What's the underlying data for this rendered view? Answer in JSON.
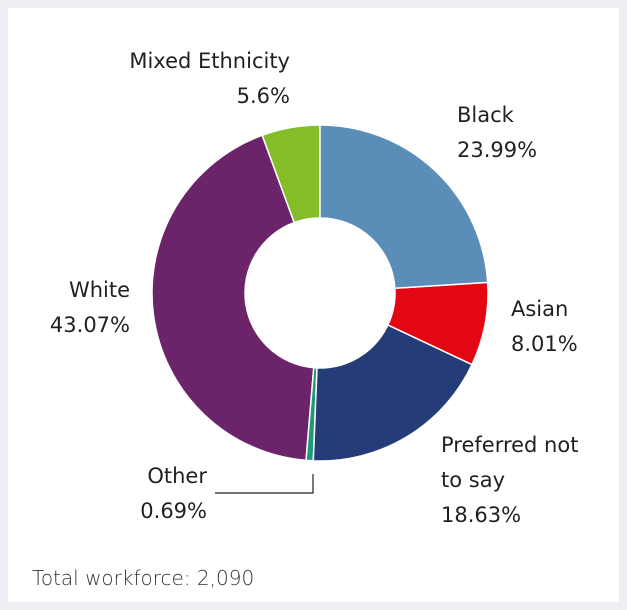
{
  "chart_data": {
    "type": "donut",
    "categories": [
      "Black",
      "Asian",
      "Preferred not to say",
      "Other",
      "White",
      "Mixed Ethnicity"
    ],
    "values": [
      23.99,
      8.01,
      18.63,
      0.69,
      43.07,
      5.6
    ],
    "value_labels": [
      "23.99%",
      "8.01%",
      "18.63%",
      "0.69%",
      "43.07%",
      "5.6%"
    ],
    "colors": [
      "#5b8db9",
      "#e30613",
      "#253c78",
      "#1d9a78",
      "#6b2469",
      "#84bd27"
    ],
    "annotation": "Total workforce: 2,090"
  }
}
